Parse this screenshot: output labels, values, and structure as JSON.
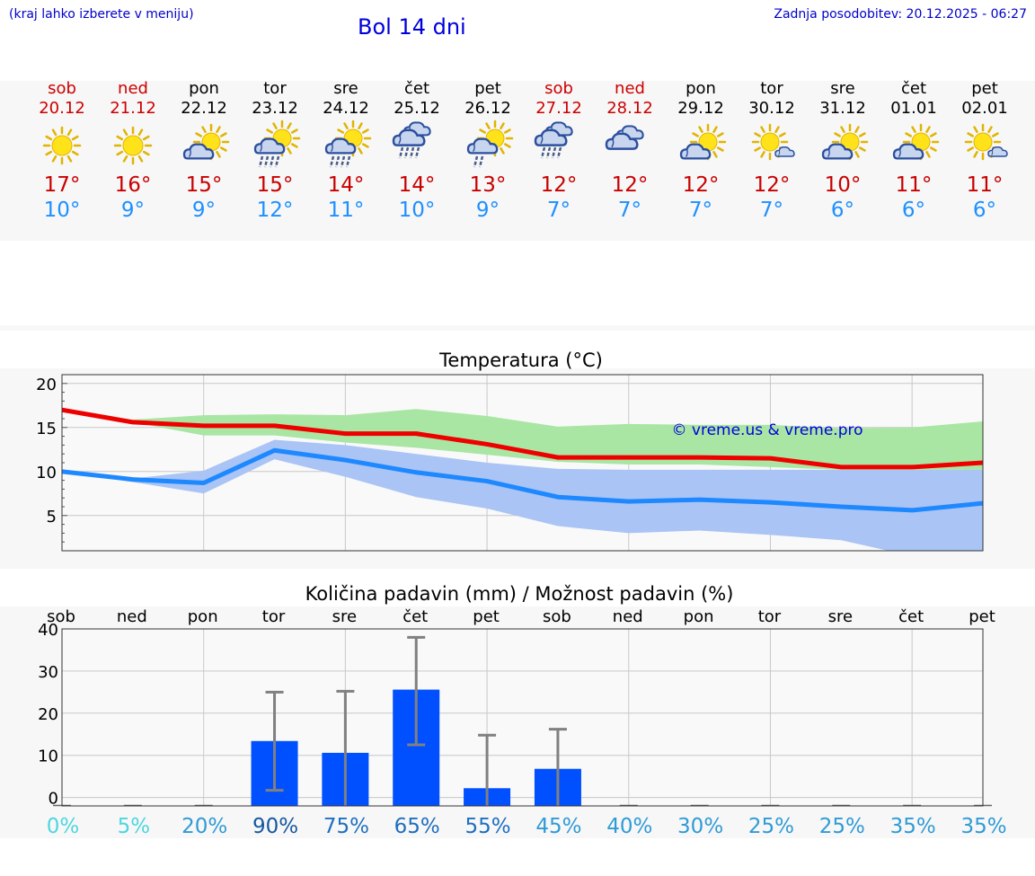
{
  "header": {
    "hint": "(kraj lahko izberete v meniju)",
    "title": "Bol 14 dni",
    "updated": "Zadnja posodobitev: 20.12.2025 - 06:27"
  },
  "days": [
    {
      "name": "sob",
      "date": "20.12",
      "weekend": true,
      "icon": "sun-icon",
      "max": "17°",
      "min": "10°"
    },
    {
      "name": "ned",
      "date": "21.12",
      "weekend": true,
      "icon": "sun-icon",
      "max": "16°",
      "min": "9°"
    },
    {
      "name": "pon",
      "date": "22.12",
      "weekend": false,
      "icon": "partly-cloudy-icon",
      "max": "15°",
      "min": "9°"
    },
    {
      "name": "tor",
      "date": "23.12",
      "weekend": false,
      "icon": "sun-cloud-rain-icon",
      "max": "15°",
      "min": "12°"
    },
    {
      "name": "sre",
      "date": "24.12",
      "weekend": false,
      "icon": "sun-cloud-rain-icon",
      "max": "14°",
      "min": "11°"
    },
    {
      "name": "čet",
      "date": "25.12",
      "weekend": false,
      "icon": "cloud-rain-icon",
      "max": "14°",
      "min": "10°"
    },
    {
      "name": "pet",
      "date": "26.12",
      "weekend": false,
      "icon": "sun-cloud-light-rain-icon",
      "max": "13°",
      "min": "9°"
    },
    {
      "name": "sob",
      "date": "27.12",
      "weekend": true,
      "icon": "cloud-rain-icon",
      "max": "12°",
      "min": "7°"
    },
    {
      "name": "ned",
      "date": "28.12",
      "weekend": true,
      "icon": "cloudy-icon",
      "max": "12°",
      "min": "7°"
    },
    {
      "name": "pon",
      "date": "29.12",
      "weekend": false,
      "icon": "partly-cloudy-icon",
      "max": "12°",
      "min": "7°"
    },
    {
      "name": "tor",
      "date": "30.12",
      "weekend": false,
      "icon": "sun-small-cloud-icon",
      "max": "12°",
      "min": "7°"
    },
    {
      "name": "sre",
      "date": "31.12",
      "weekend": false,
      "icon": "partly-cloudy-icon",
      "max": "10°",
      "min": "6°"
    },
    {
      "name": "čet",
      "date": "01.01",
      "weekend": false,
      "icon": "partly-cloudy-icon",
      "max": "11°",
      "min": "6°"
    },
    {
      "name": "pet",
      "date": "02.01",
      "weekend": false,
      "icon": "sun-small-cloud-icon",
      "max": "11°",
      "min": "6°"
    }
  ],
  "colors": {
    "max_line": "#ee0000",
    "min_line": "#1e88ff",
    "max_band": "#a9e6a3",
    "min_band": "#a9c4f5",
    "overlap_band": "#7cc7a3",
    "bar": "#0050ff",
    "whisker": "#808080",
    "weekend": "#cc0000"
  },
  "chart_data": [
    {
      "type": "line",
      "title": "Temperatura (°C)",
      "watermark": "© vreme.us & vreme.pro",
      "x": [
        0,
        1,
        2,
        3,
        4,
        5,
        6,
        7,
        8,
        9,
        10,
        11,
        12,
        13
      ],
      "ylim": [
        1,
        21
      ],
      "yticks": [
        5,
        10,
        15,
        20
      ],
      "series": [
        {
          "name": "max",
          "values": [
            17,
            15.6,
            15.2,
            15.2,
            14.3,
            14.3,
            13.1,
            11.6,
            11.6,
            11.6,
            11.5,
            10.5,
            10.5,
            11
          ]
        },
        {
          "name": "min",
          "values": [
            10,
            9.1,
            8.7,
            12.4,
            11.3,
            9.9,
            8.9,
            7.1,
            6.6,
            6.8,
            6.5,
            6,
            5.6,
            6.4
          ]
        }
      ],
      "bands": [
        {
          "name": "max-range",
          "low": [
            17,
            15.6,
            14.1,
            14.1,
            13.3,
            12.7,
            11.9,
            11.1,
            10.8,
            10.8,
            10.5,
            10.2,
            10.2,
            10.2
          ],
          "high": [
            17,
            15.9,
            16.4,
            16.5,
            16.4,
            17.1,
            16.3,
            15.1,
            15.4,
            15.3,
            15.3,
            14.9,
            15.0,
            15.7
          ]
        },
        {
          "name": "min-range",
          "low": [
            10,
            8.8,
            7.5,
            11.4,
            9.4,
            7.1,
            5.8,
            3.8,
            3.0,
            3.3,
            2.8,
            2.2,
            0.4,
            0.9
          ],
          "high": [
            10,
            9.2,
            10.1,
            13.6,
            13.0,
            12.0,
            11.0,
            10.3,
            10.2,
            10.2,
            10.2,
            10.2,
            10.2,
            10.2
          ]
        }
      ]
    },
    {
      "type": "bar",
      "title": "Količina padavin (mm) / Možnost padavin (%)",
      "categories": [
        "sob",
        "ned",
        "pon",
        "tor",
        "sre",
        "čet",
        "pet",
        "sob",
        "ned",
        "pon",
        "tor",
        "sre",
        "čet",
        "pet"
      ],
      "values": [
        0,
        0,
        0,
        13.4,
        10.6,
        25.6,
        2.2,
        6.8,
        0,
        0,
        0,
        0,
        0,
        0
      ],
      "error_low": [
        0,
        0,
        0,
        1.7,
        0,
        12.5,
        0,
        0,
        0,
        0,
        0,
        0,
        0,
        0
      ],
      "error_high": [
        0,
        0,
        0,
        25,
        25.2,
        38,
        14.8,
        16.2,
        0,
        0,
        0,
        0,
        0,
        0
      ],
      "ylim": [
        -2,
        40
      ],
      "yticks": [
        0,
        10,
        20,
        30,
        40
      ],
      "probability": [
        "0%",
        "5%",
        "20%",
        "90%",
        "75%",
        "65%",
        "55%",
        "45%",
        "40%",
        "30%",
        "25%",
        "25%",
        "35%",
        "35%"
      ],
      "probability_colors": [
        "#4dd6e0",
        "#4dd6e0",
        "#2f9bd6",
        "#1658a0",
        "#1e6fc0",
        "#1e6fc0",
        "#1e6fc0",
        "#2f9bd6",
        "#2f9bd6",
        "#2f9bd6",
        "#2f9bd6",
        "#2f9bd6",
        "#2f9bd6",
        "#2f9bd6"
      ]
    }
  ]
}
